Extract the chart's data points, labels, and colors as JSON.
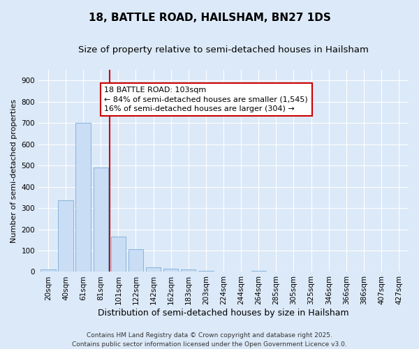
{
  "title": "18, BATTLE ROAD, HAILSHAM, BN27 1DS",
  "subtitle": "Size of property relative to semi-detached houses in Hailsham",
  "xlabel": "Distribution of semi-detached houses by size in Hailsham",
  "ylabel": "Number of semi-detached properties",
  "categories": [
    "20sqm",
    "40sqm",
    "61sqm",
    "81sqm",
    "101sqm",
    "122sqm",
    "142sqm",
    "162sqm",
    "183sqm",
    "203sqm",
    "224sqm",
    "244sqm",
    "264sqm",
    "285sqm",
    "305sqm",
    "325sqm",
    "346sqm",
    "366sqm",
    "386sqm",
    "407sqm",
    "427sqm"
  ],
  "values": [
    10,
    335,
    700,
    490,
    165,
    105,
    20,
    15,
    10,
    5,
    0,
    0,
    5,
    0,
    0,
    0,
    0,
    0,
    0,
    0,
    0
  ],
  "bar_color": "#c9ddf5",
  "bar_edge_color": "#7aaed6",
  "red_line_index": 3.5,
  "annotation_title": "18 BATTLE ROAD: 103sqm",
  "annotation_line2": "← 84% of semi-detached houses are smaller (1,545)",
  "annotation_line3": "16% of semi-detached houses are larger (304) →",
  "annotation_box_color": "#ffffff",
  "annotation_box_edge": "#cc0000",
  "red_line_color": "#cc0000",
  "ylim": [
    0,
    950
  ],
  "yticks": [
    0,
    100,
    200,
    300,
    400,
    500,
    600,
    700,
    800,
    900
  ],
  "footer": "Contains HM Land Registry data © Crown copyright and database right 2025.\nContains public sector information licensed under the Open Government Licence v3.0.",
  "background_color": "#dce9f8",
  "grid_color": "#ffffff",
  "title_fontsize": 11,
  "subtitle_fontsize": 9.5,
  "xlabel_fontsize": 9,
  "ylabel_fontsize": 8,
  "tick_fontsize": 7.5,
  "annotation_fontsize": 8,
  "footer_fontsize": 6.5
}
